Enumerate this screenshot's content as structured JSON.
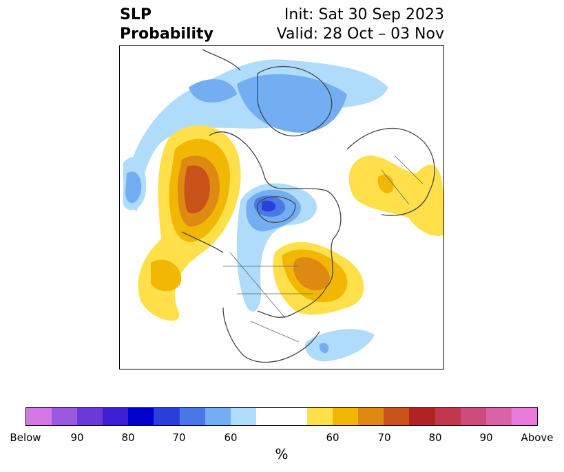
{
  "title": {
    "variable": "SLP",
    "product": "Probability",
    "init": "Init: Sat 30 Sep 2023",
    "valid": "Valid: 28 Oct – 03 Nov"
  },
  "map": {
    "projection": "polar stereographic, North America / Arctic",
    "features": [
      {
        "name": "Alaska / NE Pacific above-normal center",
        "category": "above",
        "peak_percent": 75
      },
      {
        "name": "Hudson Bay below-normal center",
        "category": "below",
        "peak_percent": 75
      },
      {
        "name": "Eastern Canada / Great Lakes above-normal center",
        "category": "above",
        "peak_percent": 70
      },
      {
        "name": "Arctic / Siberia below-normal region",
        "category": "below",
        "peak_percent": 60
      },
      {
        "name": "Northern Europe / Scandinavia above-normal region",
        "category": "above",
        "peak_percent": 60
      },
      {
        "name": "North Pacific below-normal region",
        "category": "below",
        "peak_percent": 60
      },
      {
        "name": "Western Atlantic below-normal patch",
        "category": "below",
        "peak_percent": 60
      }
    ]
  },
  "colorbar": {
    "label": "%",
    "ticks": [
      "Below",
      "90",
      "80",
      "70",
      "60",
      "60",
      "70",
      "80",
      "90",
      "Above"
    ],
    "colors": [
      "#d677e8",
      "#9b59e0",
      "#6a3ad8",
      "#3b1fd2",
      "#0000cc",
      "#2a3fdb",
      "#4a78e6",
      "#73aef2",
      "#aedcfa",
      "#ffffff",
      "#ffffff",
      "#ffe04a",
      "#f2b705",
      "#de8a12",
      "#c8521a",
      "#b22222",
      "#c0374e",
      "#cc4c7c",
      "#d962a8",
      "#e87adc"
    ]
  }
}
